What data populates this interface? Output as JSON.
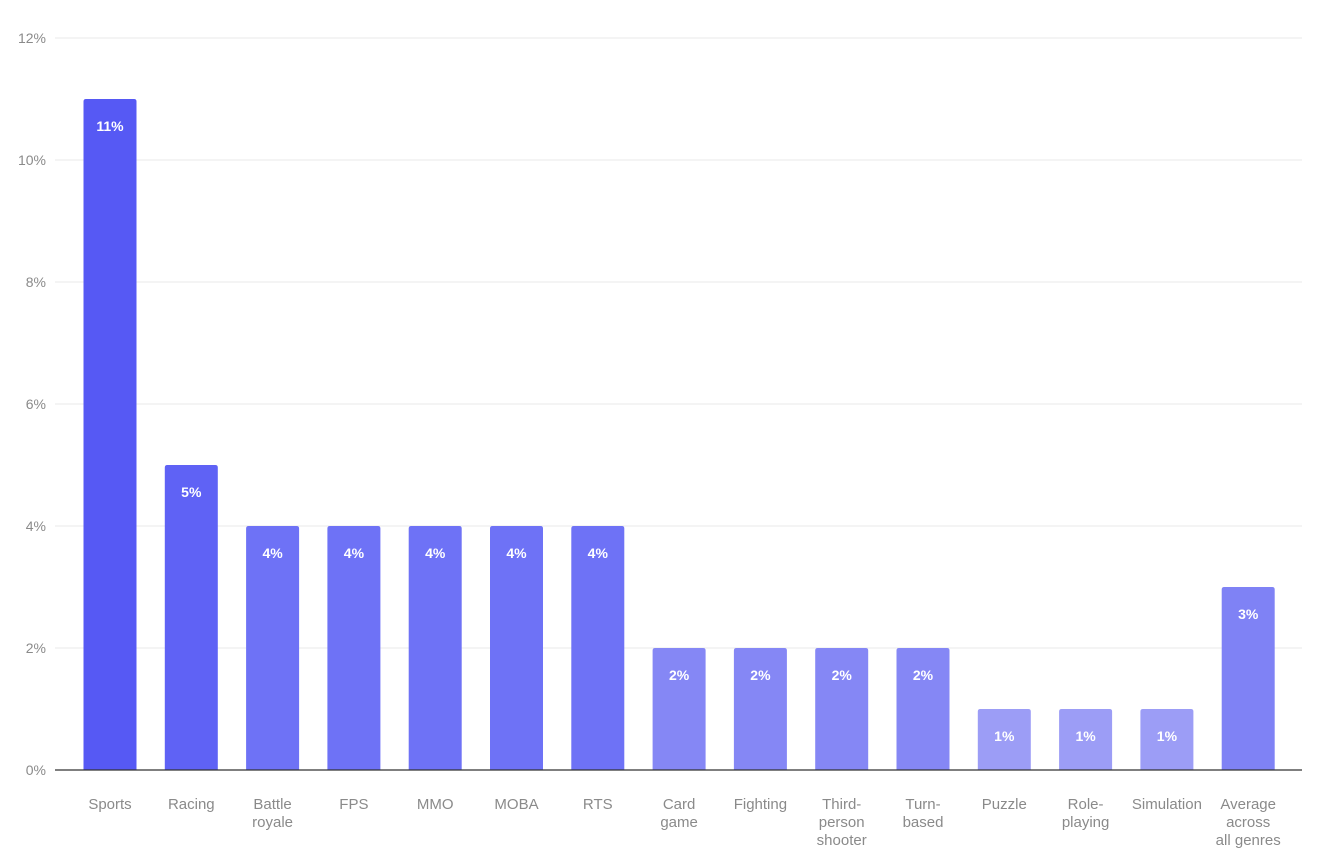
{
  "chart_data": {
    "type": "bar",
    "title": "",
    "xlabel": "",
    "ylabel": "",
    "ylim": [
      0,
      12
    ],
    "yticks": [
      "0%",
      "2%",
      "4%",
      "6%",
      "8%",
      "10%",
      "12%"
    ],
    "grid": true,
    "categories": [
      "Sports",
      "Racing",
      "Battle royale",
      "FPS",
      "MMO",
      "MOBA",
      "RTS",
      "Card game",
      "Fighting",
      "Third-person shooter",
      "Turn-based",
      "Puzzle",
      "Role-playing",
      "Simulation",
      "Average across all genres"
    ],
    "category_lines": [
      [
        "Sports"
      ],
      [
        "Racing"
      ],
      [
        "Battle",
        "royale"
      ],
      [
        "FPS"
      ],
      [
        "MMO"
      ],
      [
        "MOBA"
      ],
      [
        "RTS"
      ],
      [
        "Card",
        "game"
      ],
      [
        "Fighting"
      ],
      [
        "Third-",
        "person",
        "shooter"
      ],
      [
        "Turn-",
        "based"
      ],
      [
        "Puzzle"
      ],
      [
        "Role-",
        "playing"
      ],
      [
        "Simulation"
      ],
      [
        "Average",
        "across",
        "all genres"
      ]
    ],
    "values": [
      11,
      5,
      4,
      4,
      4,
      4,
      4,
      2,
      2,
      2,
      2,
      1,
      1,
      1,
      3
    ],
    "data_labels": [
      "11%",
      "5%",
      "4%",
      "4%",
      "4%",
      "4%",
      "4%",
      "2%",
      "2%",
      "2%",
      "2%",
      "1%",
      "1%",
      "1%",
      "3%"
    ],
    "colors": [
      "#5659f4",
      "#5f62f5",
      "#6e72f6",
      "#6e72f6",
      "#6e72f6",
      "#6e72f6",
      "#6e72f6",
      "#8587f5",
      "#8587f5",
      "#8587f5",
      "#8587f5",
      "#9c9df6",
      "#9c9df6",
      "#9c9df6",
      "#7f82f5"
    ]
  }
}
